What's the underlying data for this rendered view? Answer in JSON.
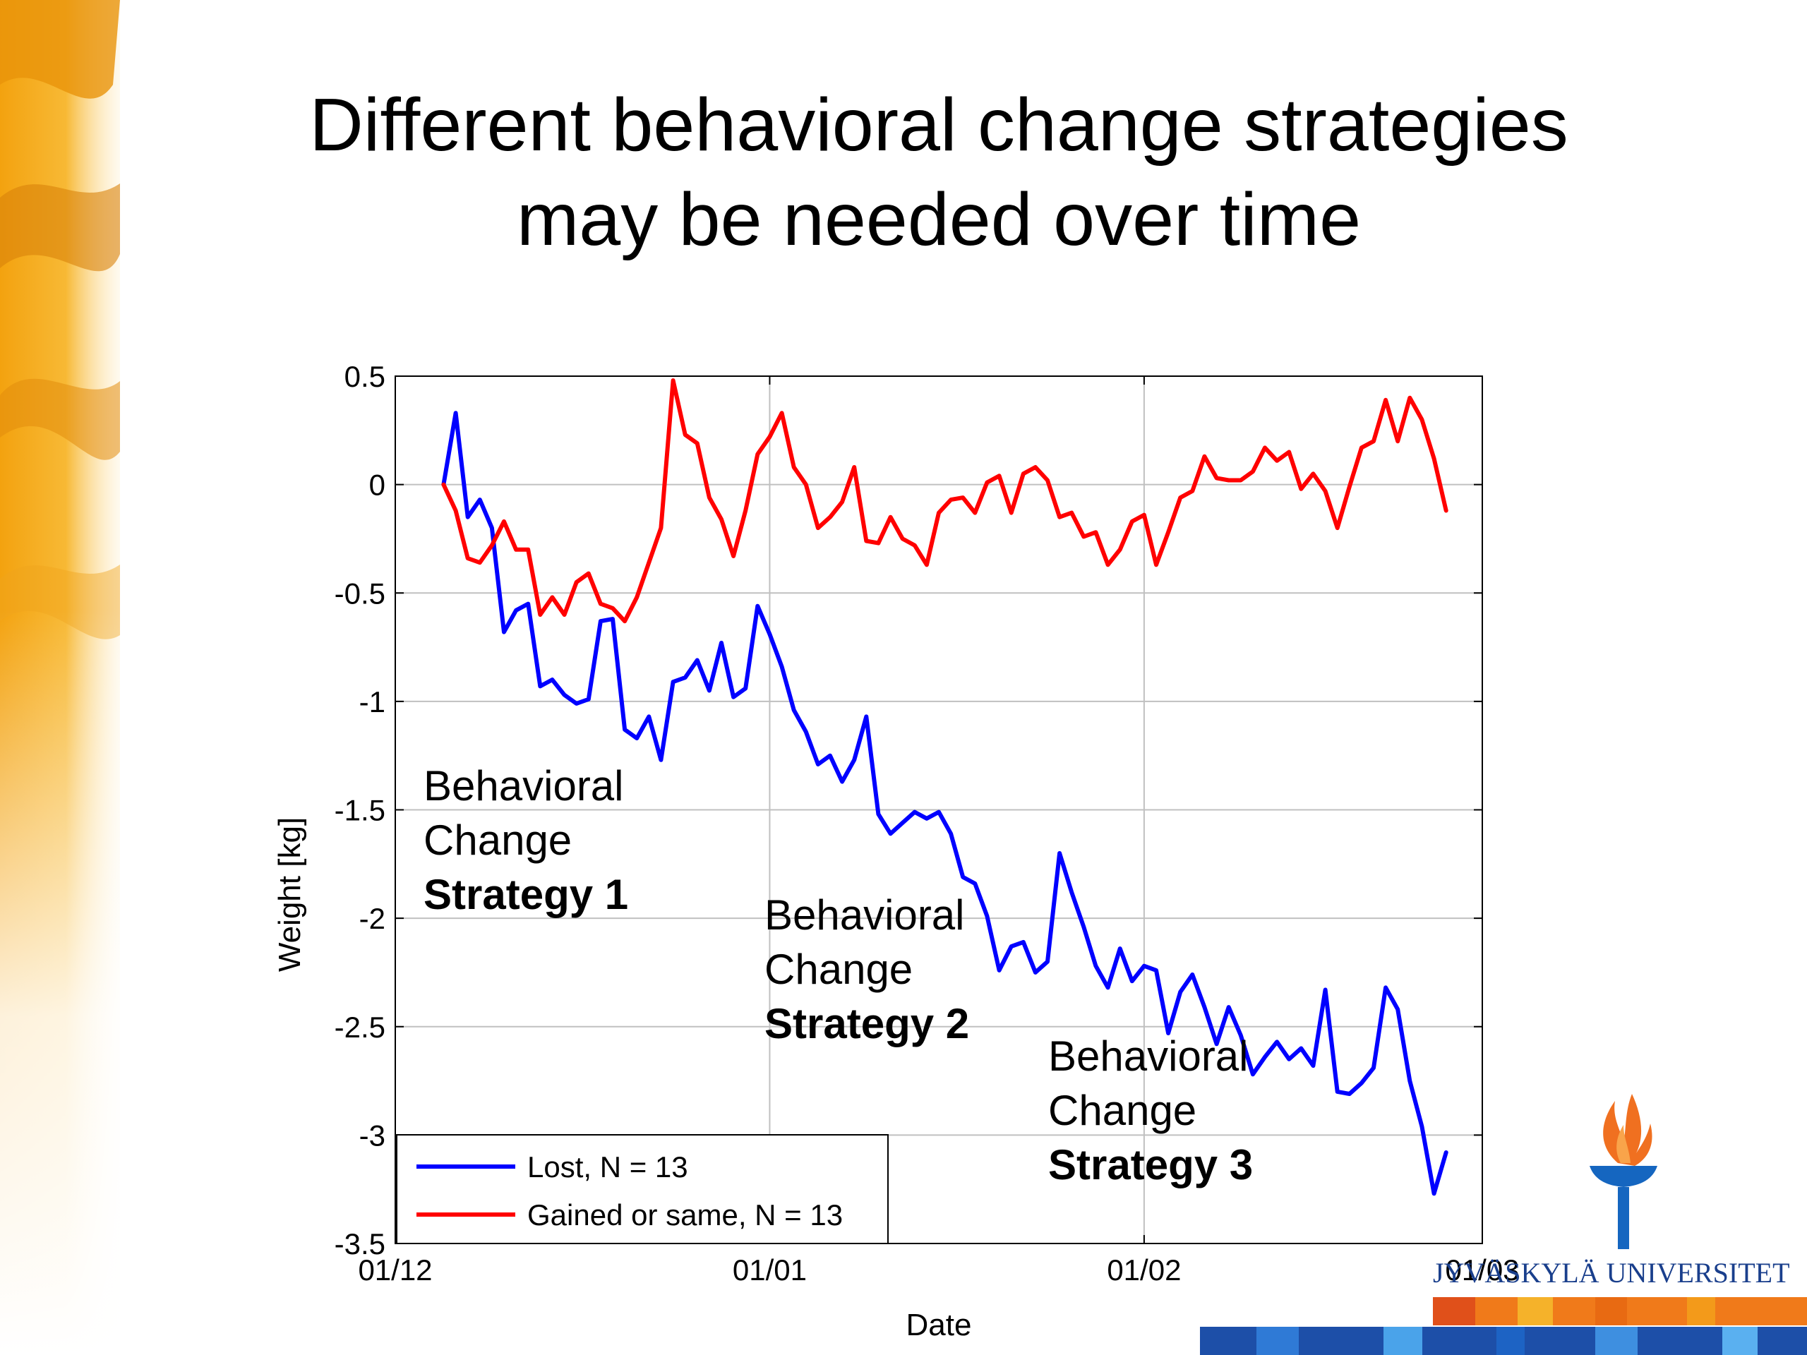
{
  "slide": {
    "title_lines": [
      "Different behavioral change strategies",
      "may be needed over time"
    ],
    "annotations": [
      {
        "lines": [
          "Behavioral",
          "Change"
        ],
        "strong": "Strategy 1"
      },
      {
        "lines": [
          "Behavioral",
          "Change"
        ],
        "strong": "Strategy 2"
      },
      {
        "lines": [
          "Behavioral",
          "Change"
        ],
        "strong": "Strategy 3"
      }
    ],
    "logo_text": "JYVÄSKYLÄ UNIVERSITET"
  },
  "chart_data": {
    "type": "line",
    "xlabel": "Date",
    "ylabel": "Weight [kg]",
    "xlim": [
      "2012-12-01",
      "2013-03-01"
    ],
    "ylim": [
      -3.5,
      0.5
    ],
    "x_ticks": [
      {
        "date": "2012-12-01",
        "label": "01/12"
      },
      {
        "date": "2013-01-01",
        "label": "01/01"
      },
      {
        "date": "2013-02-01",
        "label": "01/02"
      },
      {
        "date": "2013-03-01",
        "label": "01/03"
      }
    ],
    "y_ticks": [
      {
        "value": 0.5,
        "label": "0.5"
      },
      {
        "value": 0,
        "label": "0"
      },
      {
        "value": -0.5,
        "label": "-0.5"
      },
      {
        "value": -1,
        "label": "-1"
      },
      {
        "value": -1.5,
        "label": "-1.5"
      },
      {
        "value": -2,
        "label": "-2"
      },
      {
        "value": -2.5,
        "label": "-2.5"
      },
      {
        "value": -3,
        "label": "-3"
      },
      {
        "value": -3.5,
        "label": "-3.5"
      }
    ],
    "grid": true,
    "legend_position": "bottom-left",
    "series": [
      {
        "name": "Lost, N = 13",
        "color": "#0000ff",
        "points": [
          [
            "2012-12-05",
            0.0
          ],
          [
            "2012-12-06",
            0.33
          ],
          [
            "2012-12-07",
            -0.15
          ],
          [
            "2012-12-08",
            -0.07
          ],
          [
            "2012-12-09",
            -0.2
          ],
          [
            "2012-12-10",
            -0.68
          ],
          [
            "2012-12-11",
            -0.58
          ],
          [
            "2012-12-12",
            -0.55
          ],
          [
            "2012-12-13",
            -0.93
          ],
          [
            "2012-12-14",
            -0.9
          ],
          [
            "2012-12-15",
            -0.97
          ],
          [
            "2012-12-16",
            -1.01
          ],
          [
            "2012-12-17",
            -0.99
          ],
          [
            "2012-12-18",
            -0.63
          ],
          [
            "2012-12-19",
            -0.62
          ],
          [
            "2012-12-20",
            -1.13
          ],
          [
            "2012-12-21",
            -1.17
          ],
          [
            "2012-12-22",
            -1.07
          ],
          [
            "2012-12-23",
            -1.27
          ],
          [
            "2012-12-24",
            -0.91
          ],
          [
            "2012-12-25",
            -0.89
          ],
          [
            "2012-12-26",
            -0.81
          ],
          [
            "2012-12-27",
            -0.95
          ],
          [
            "2012-12-28",
            -0.73
          ],
          [
            "2012-12-29",
            -0.98
          ],
          [
            "2012-12-30",
            -0.94
          ],
          [
            "2012-12-31",
            -0.56
          ],
          [
            "2013-01-01",
            -0.69
          ],
          [
            "2013-01-02",
            -0.84
          ],
          [
            "2013-01-03",
            -1.04
          ],
          [
            "2013-01-04",
            -1.14
          ],
          [
            "2013-01-05",
            -1.29
          ],
          [
            "2013-01-06",
            -1.25
          ],
          [
            "2013-01-07",
            -1.37
          ],
          [
            "2013-01-08",
            -1.27
          ],
          [
            "2013-01-09",
            -1.07
          ],
          [
            "2013-01-10",
            -1.52
          ],
          [
            "2013-01-11",
            -1.61
          ],
          [
            "2013-01-12",
            -1.56
          ],
          [
            "2013-01-13",
            -1.51
          ],
          [
            "2013-01-14",
            -1.54
          ],
          [
            "2013-01-15",
            -1.51
          ],
          [
            "2013-01-16",
            -1.61
          ],
          [
            "2013-01-17",
            -1.81
          ],
          [
            "2013-01-18",
            -1.84
          ],
          [
            "2013-01-19",
            -1.99
          ],
          [
            "2013-01-20",
            -2.24
          ],
          [
            "2013-01-21",
            -2.13
          ],
          [
            "2013-01-22",
            -2.11
          ],
          [
            "2013-01-23",
            -2.25
          ],
          [
            "2013-01-24",
            -2.2
          ],
          [
            "2013-01-25",
            -1.7
          ],
          [
            "2013-01-26",
            -1.88
          ],
          [
            "2013-01-27",
            -2.04
          ],
          [
            "2013-01-28",
            -2.22
          ],
          [
            "2013-01-29",
            -2.32
          ],
          [
            "2013-01-30",
            -2.14
          ],
          [
            "2013-01-31",
            -2.29
          ],
          [
            "2013-02-01",
            -2.22
          ],
          [
            "2013-02-02",
            -2.24
          ],
          [
            "2013-02-03",
            -2.53
          ],
          [
            "2013-02-04",
            -2.34
          ],
          [
            "2013-02-05",
            -2.26
          ],
          [
            "2013-02-06",
            -2.41
          ],
          [
            "2013-02-07",
            -2.58
          ],
          [
            "2013-02-08",
            -2.41
          ],
          [
            "2013-02-09",
            -2.54
          ],
          [
            "2013-02-10",
            -2.72
          ],
          [
            "2013-02-11",
            -2.64
          ],
          [
            "2013-02-12",
            -2.57
          ],
          [
            "2013-02-13",
            -2.65
          ],
          [
            "2013-02-14",
            -2.6
          ],
          [
            "2013-02-15",
            -2.68
          ],
          [
            "2013-02-16",
            -2.33
          ],
          [
            "2013-02-17",
            -2.8
          ],
          [
            "2013-02-18",
            -2.81
          ],
          [
            "2013-02-19",
            -2.76
          ],
          [
            "2013-02-20",
            -2.69
          ],
          [
            "2013-02-21",
            -2.32
          ],
          [
            "2013-02-22",
            -2.42
          ],
          [
            "2013-02-23",
            -2.75
          ],
          [
            "2013-02-24",
            -2.96
          ],
          [
            "2013-02-25",
            -3.27
          ],
          [
            "2013-02-26",
            -3.08
          ]
        ]
      },
      {
        "name": "Gained or same, N = 13",
        "color": "#ff0000",
        "points": [
          [
            "2012-12-05",
            0.0
          ],
          [
            "2012-12-06",
            -0.12
          ],
          [
            "2012-12-07",
            -0.34
          ],
          [
            "2012-12-08",
            -0.36
          ],
          [
            "2012-12-09",
            -0.28
          ],
          [
            "2012-12-10",
            -0.17
          ],
          [
            "2012-12-11",
            -0.3
          ],
          [
            "2012-12-12",
            -0.3
          ],
          [
            "2012-12-13",
            -0.6
          ],
          [
            "2012-12-14",
            -0.52
          ],
          [
            "2012-12-15",
            -0.6
          ],
          [
            "2012-12-16",
            -0.45
          ],
          [
            "2012-12-17",
            -0.41
          ],
          [
            "2012-12-18",
            -0.55
          ],
          [
            "2012-12-19",
            -0.57
          ],
          [
            "2012-12-20",
            -0.63
          ],
          [
            "2012-12-21",
            -0.52
          ],
          [
            "2012-12-22",
            -0.36
          ],
          [
            "2012-12-23",
            -0.2
          ],
          [
            "2012-12-24",
            0.48
          ],
          [
            "2012-12-25",
            0.23
          ],
          [
            "2012-12-26",
            0.19
          ],
          [
            "2012-12-27",
            -0.06
          ],
          [
            "2012-12-28",
            -0.16
          ],
          [
            "2012-12-29",
            -0.33
          ],
          [
            "2012-12-30",
            -0.12
          ],
          [
            "2012-12-31",
            0.14
          ],
          [
            "2013-01-01",
            0.22
          ],
          [
            "2013-01-02",
            0.33
          ],
          [
            "2013-01-03",
            0.08
          ],
          [
            "2013-01-04",
            0.0
          ],
          [
            "2013-01-05",
            -0.2
          ],
          [
            "2013-01-06",
            -0.15
          ],
          [
            "2013-01-07",
            -0.08
          ],
          [
            "2013-01-08",
            0.08
          ],
          [
            "2013-01-09",
            -0.26
          ],
          [
            "2013-01-10",
            -0.27
          ],
          [
            "2013-01-11",
            -0.15
          ],
          [
            "2013-01-12",
            -0.25
          ],
          [
            "2013-01-13",
            -0.28
          ],
          [
            "2013-01-14",
            -0.37
          ],
          [
            "2013-01-15",
            -0.13
          ],
          [
            "2013-01-16",
            -0.07
          ],
          [
            "2013-01-17",
            -0.06
          ],
          [
            "2013-01-18",
            -0.13
          ],
          [
            "2013-01-19",
            0.01
          ],
          [
            "2013-01-20",
            0.04
          ],
          [
            "2013-01-21",
            -0.13
          ],
          [
            "2013-01-22",
            0.05
          ],
          [
            "2013-01-23",
            0.08
          ],
          [
            "2013-01-24",
            0.02
          ],
          [
            "2013-01-25",
            -0.15
          ],
          [
            "2013-01-26",
            -0.13
          ],
          [
            "2013-01-27",
            -0.24
          ],
          [
            "2013-01-28",
            -0.22
          ],
          [
            "2013-01-29",
            -0.37
          ],
          [
            "2013-01-30",
            -0.3
          ],
          [
            "2013-01-31",
            -0.17
          ],
          [
            "2013-02-01",
            -0.14
          ],
          [
            "2013-02-02",
            -0.37
          ],
          [
            "2013-02-03",
            -0.22
          ],
          [
            "2013-02-04",
            -0.06
          ],
          [
            "2013-02-05",
            -0.03
          ],
          [
            "2013-02-06",
            0.13
          ],
          [
            "2013-02-07",
            0.03
          ],
          [
            "2013-02-08",
            0.02
          ],
          [
            "2013-02-09",
            0.02
          ],
          [
            "2013-02-10",
            0.06
          ],
          [
            "2013-02-11",
            0.17
          ],
          [
            "2013-02-12",
            0.11
          ],
          [
            "2013-02-13",
            0.15
          ],
          [
            "2013-02-14",
            -0.02
          ],
          [
            "2013-02-15",
            0.05
          ],
          [
            "2013-02-16",
            -0.03
          ],
          [
            "2013-02-17",
            -0.2
          ],
          [
            "2013-02-18",
            -0.01
          ],
          [
            "2013-02-19",
            0.17
          ],
          [
            "2013-02-20",
            0.2
          ],
          [
            "2013-02-21",
            0.39
          ],
          [
            "2013-02-22",
            0.2
          ],
          [
            "2013-02-23",
            0.4
          ],
          [
            "2013-02-24",
            0.3
          ],
          [
            "2013-02-25",
            0.12
          ],
          [
            "2013-02-26",
            -0.12
          ]
        ]
      }
    ]
  },
  "colors": {
    "grid": "#c0c0c0",
    "axis": "#000000",
    "logo_blue": "#1a3f8c",
    "flame_orange": "#f07020",
    "torch_blue": "#1566c0"
  },
  "icons": {
    "background_left": "orange-floral-decoration",
    "logo": "torch-logo-icon"
  }
}
